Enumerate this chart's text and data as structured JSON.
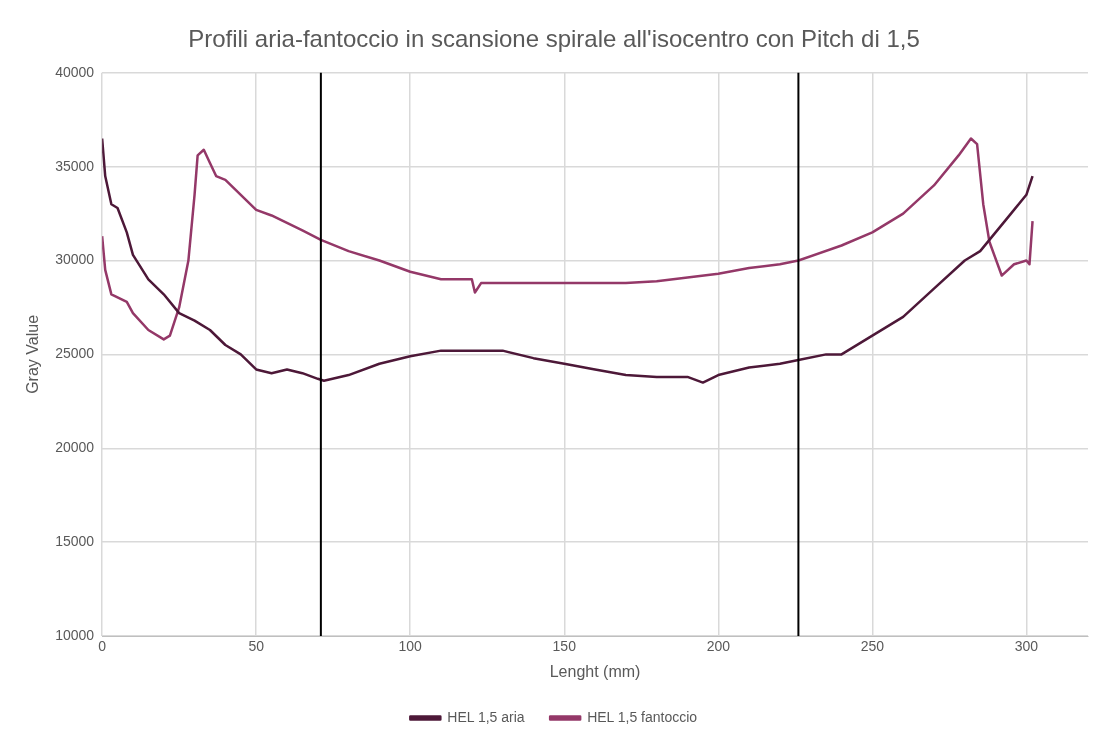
{
  "chart_data": {
    "type": "line",
    "title": "Profili aria-fantoccio in scansione spirale all'isocentro con Pitch di 1,5",
    "xlabel": "Lenght (mm)",
    "ylabel": "Gray Value",
    "xlim": [
      0,
      320
    ],
    "xticks": [
      0,
      50,
      100,
      150,
      200,
      250,
      300
    ],
    "ylim": [
      10000,
      40000
    ],
    "yticks": [
      10000,
      15000,
      20000,
      25000,
      30000,
      35000,
      40000
    ],
    "grid": true,
    "legend": "bottom",
    "marker": "none",
    "line_style": "solid",
    "ref_lines": [
      {
        "axis": "x",
        "value": 71,
        "color": "#000000"
      },
      {
        "axis": "x",
        "value": 226,
        "color": "#000000"
      }
    ],
    "series": [
      {
        "name": "HEL 1,5 aria",
        "color": "#4d1838",
        "x": [
          0,
          1,
          3,
          5,
          8,
          10,
          15,
          20,
          25,
          30,
          35,
          40,
          45,
          50,
          55,
          60,
          65,
          70,
          72,
          80,
          90,
          100,
          110,
          120,
          130,
          140,
          150,
          160,
          170,
          180,
          190,
          195,
          200,
          210,
          220,
          226,
          235,
          240,
          250,
          260,
          270,
          280,
          285,
          290,
          295,
          300,
          302
        ],
        "values": [
          36500,
          34500,
          33000,
          32800,
          31500,
          30300,
          29000,
          28200,
          27200,
          26800,
          26300,
          25500,
          25000,
          24200,
          24000,
          24200,
          24000,
          23700,
          23600,
          23900,
          24500,
          24900,
          25200,
          25200,
          25200,
          24800,
          24500,
          24200,
          23900,
          23800,
          23800,
          23500,
          23900,
          24300,
          24500,
          24700,
          25000,
          25000,
          26000,
          27000,
          28500,
          30000,
          30500,
          31500,
          32500,
          33500,
          34500
        ]
      },
      {
        "name": "HEL 1,5 fantoccio",
        "color": "#943868",
        "x": [
          0,
          1,
          3,
          8,
          10,
          15,
          20,
          22,
          25,
          28,
          30,
          31,
          33,
          35,
          37,
          40,
          45,
          50,
          55,
          60,
          65,
          71,
          80,
          90,
          100,
          110,
          120,
          121,
          123,
          130,
          150,
          170,
          180,
          190,
          200,
          210,
          220,
          226,
          240,
          250,
          260,
          270,
          278,
          282,
          284,
          286,
          288,
          292,
          296,
          300,
          301,
          302
        ],
        "values": [
          31300,
          29500,
          28200,
          27800,
          27200,
          26300,
          25800,
          26000,
          27500,
          30000,
          33500,
          35600,
          35900,
          35200,
          34500,
          34300,
          33500,
          32700,
          32400,
          32000,
          31600,
          31100,
          30500,
          30000,
          29400,
          29000,
          29000,
          28300,
          28800,
          28800,
          28800,
          28800,
          28900,
          29100,
          29300,
          29600,
          29800,
          30000,
          30800,
          31500,
          32500,
          34000,
          35600,
          36500,
          36200,
          33000,
          31000,
          29200,
          29800,
          30000,
          29800,
          32100
        ]
      }
    ]
  }
}
